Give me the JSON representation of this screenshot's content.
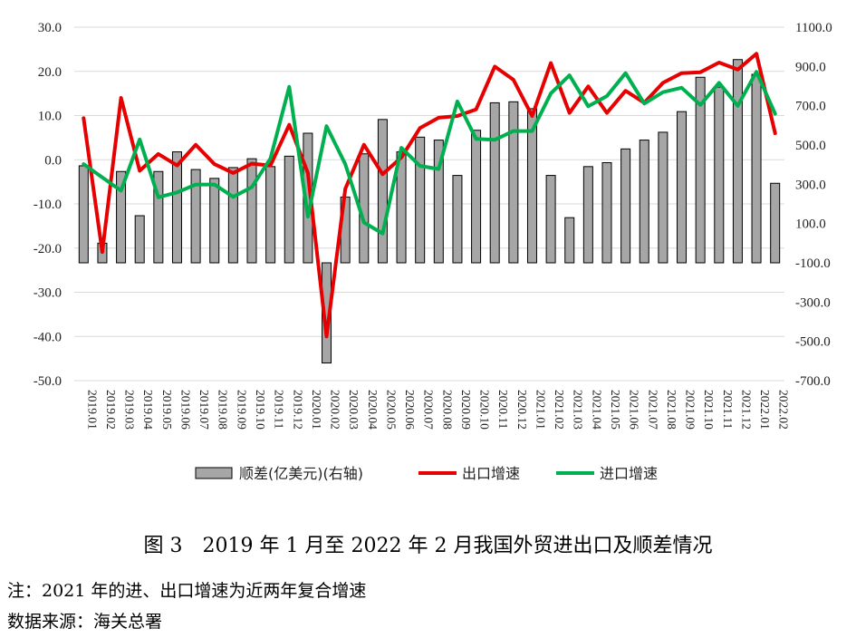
{
  "chart_data": {
    "type": "bar+line",
    "categories": [
      "2019.01",
      "2019.02",
      "2019.03",
      "2019.04",
      "2019.05",
      "2019.06",
      "2019.07",
      "2019.08",
      "2019.09",
      "2019.10",
      "2019.11",
      "2019.12",
      "2020.01",
      "2020.02",
      "2020.03",
      "2020.04",
      "2020.05",
      "2020.06",
      "2020.07",
      "2020.08",
      "2020.09",
      "2020.10",
      "2020.11",
      "2020.12",
      "2021.01",
      "2021.02",
      "2021.03",
      "2021.04",
      "2021.05",
      "2021.06",
      "2021.07",
      "2021.08",
      "2021.09",
      "2021.10",
      "2021.11",
      "2021.12",
      "2022.01",
      "2022.02"
    ],
    "left_axis": {
      "min": -50,
      "max": 30,
      "step": 10,
      "ticks": [
        "30.0",
        "20.0",
        "10.0",
        "0.0",
        "-10.0",
        "-20.0",
        "-30.0",
        "-40.0",
        "-50.0"
      ]
    },
    "right_axis": {
      "min": -700,
      "max": 1100,
      "step": 200,
      "ticks": [
        "1100.0",
        "900.0",
        "700.0",
        "500.0",
        "300.0",
        "100.0",
        "-100.0",
        "-300.0",
        "-500.0",
        "-700.0"
      ]
    },
    "series": [
      {
        "name": "顺差(亿美元)(右轴)",
        "type": "bar",
        "axis": "right",
        "color": "#a6a6a6",
        "values": [
          394,
          0,
          365,
          140,
          365,
          465,
          375,
          330,
          385,
          430,
          390,
          443,
          560,
          -610,
          235,
          455,
          630,
          465,
          540,
          525,
          345,
          575,
          715,
          720,
          685,
          345,
          130,
          390,
          410,
          480,
          525,
          565,
          670,
          845,
          795,
          935,
          860,
          305
        ]
      },
      {
        "name": "出口增速",
        "type": "line",
        "axis": "left",
        "color": "#e60000",
        "values": [
          9.4,
          -20.9,
          14.0,
          -2.5,
          1.3,
          -1.3,
          3.4,
          -1.0,
          -3.0,
          -0.9,
          -1.3,
          7.9,
          -3.0,
          -40.0,
          -6.6,
          3.4,
          -3.3,
          0.5,
          7.2,
          9.5,
          9.9,
          11.4,
          21.1,
          18.1,
          9.9,
          21.9,
          10.6,
          16.6,
          10.6,
          15.6,
          12.9,
          17.4,
          19.6,
          19.8,
          22.0,
          20.4,
          24.0,
          6.0
        ]
      },
      {
        "name": "进口增速",
        "type": "line",
        "axis": "left",
        "color": "#00b050",
        "values": [
          -1.0,
          -4.0,
          -7.0,
          4.6,
          -8.5,
          -7.4,
          -5.6,
          -5.6,
          -8.4,
          -6.2,
          0.3,
          16.5,
          -12.9,
          7.6,
          -1.0,
          -14.2,
          -16.7,
          2.7,
          -1.4,
          -2.1,
          13.2,
          4.7,
          4.5,
          6.5,
          6.5,
          15.0,
          19.1,
          12.1,
          14.4,
          19.6,
          12.7,
          15.3,
          16.3,
          12.4,
          17.4,
          12.2,
          19.9,
          10.4
        ]
      }
    ],
    "grid": "horizontal",
    "legend_position": "bottom"
  },
  "caption": "图 3　2019 年 1 月至 2022 年 2 月我国外贸进出口及顺差情况",
  "notes": {
    "note": "注：2021 年的进、出口增速为近两年复合增速",
    "source": "数据来源：海关总署"
  }
}
